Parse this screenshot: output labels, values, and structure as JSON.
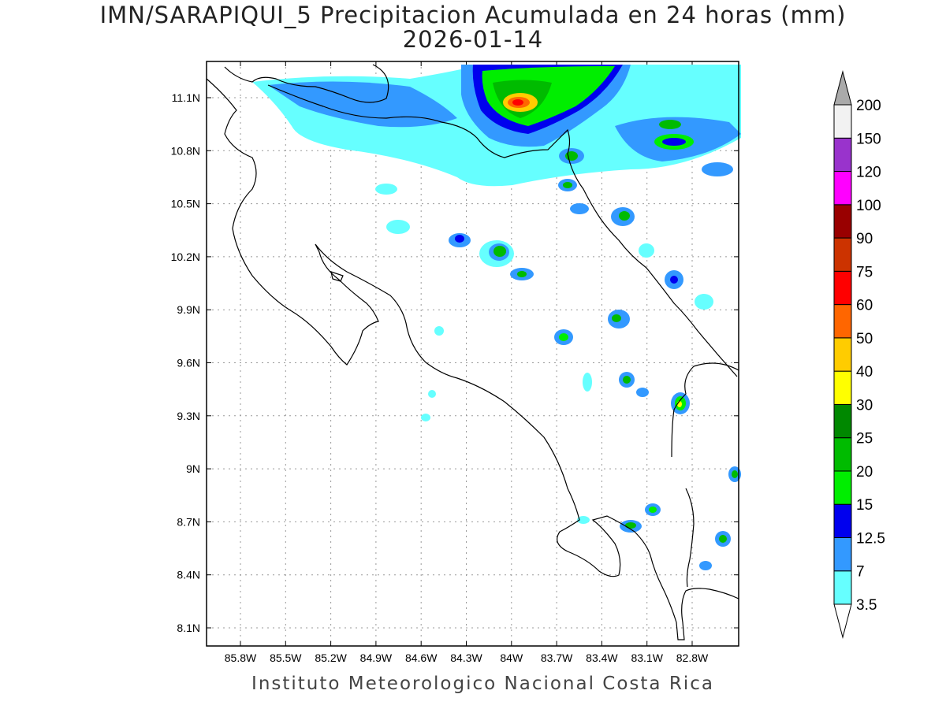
{
  "title": {
    "line1": "IMN/SARAPIQUI_5 Precipitacion Acumulada en 24 horas (mm)",
    "line2": "2026-01-14"
  },
  "footer": "Instituto Meteorologico Nacional Costa Rica",
  "map": {
    "lon_ticks": [
      "85.8W",
      "85.5W",
      "85.2W",
      "84.9W",
      "84.6W",
      "84.3W",
      "84W",
      "83.7W",
      "83.4W",
      "83.1W",
      "82.8W"
    ],
    "lat_ticks": [
      "11.1N",
      "10.8N",
      "10.5N",
      "10.2N",
      "9.9N",
      "9.6N",
      "9.3N",
      "9N",
      "8.7N",
      "8.4N",
      "8.1N"
    ]
  },
  "legend": {
    "labels": [
      "3.5",
      "7",
      "12.5",
      "15",
      "20",
      "25",
      "30",
      "40",
      "50",
      "60",
      "75",
      "90",
      "100",
      "120",
      "150",
      "200"
    ],
    "colors": [
      "#66ffff",
      "#3399ff",
      "#0000ee",
      "#00ee00",
      "#00bb00",
      "#008800",
      "#ffff00",
      "#ffcc00",
      "#ff6600",
      "#ff0000",
      "#cc3300",
      "#990000",
      "#ff00ff",
      "#9933cc",
      "#f2f2f2"
    ],
    "top_arrow_color": "#aaaaaa"
  }
}
